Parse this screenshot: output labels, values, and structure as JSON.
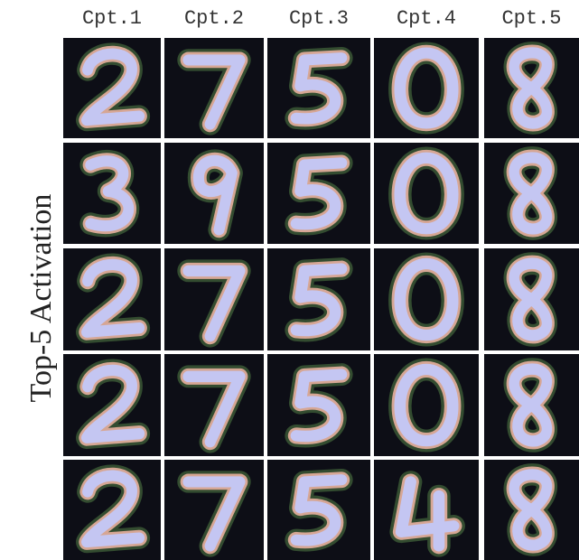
{
  "column_headers": [
    "Cpt.1",
    "Cpt.2",
    "Cpt.3",
    "Cpt.4",
    "Cpt.5"
  ],
  "row_label": "Top-5 Activation"
}
